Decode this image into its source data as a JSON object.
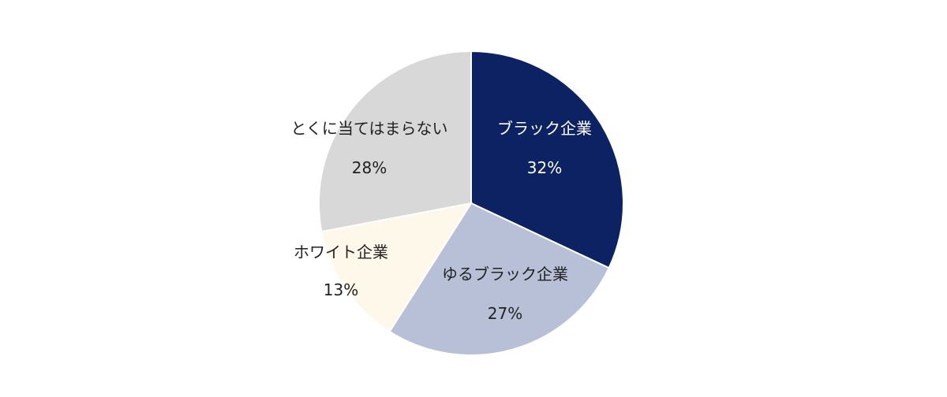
{
  "chart_data": {
    "type": "pie",
    "title": "",
    "start_angle_deg": 0,
    "direction": "clockwise",
    "slices": [
      {
        "label": "ブラック企業",
        "value": 32,
        "value_label": "32%",
        "color": "#0d2263",
        "text_color": "#ffffff"
      },
      {
        "label": "ゆるブラック企業",
        "value": 27,
        "value_label": "27%",
        "color": "#b7c0d6",
        "text_color": "#222222"
      },
      {
        "label": "ホワイト企業",
        "value": 13,
        "value_label": "13%",
        "color": "#fdf8ea",
        "text_color": "#222222"
      },
      {
        "label": "とくに当てはまらない",
        "value": 28,
        "value_label": "28%",
        "color": "#d8d8d8",
        "text_color": "#222222"
      }
    ],
    "legend": "none"
  }
}
